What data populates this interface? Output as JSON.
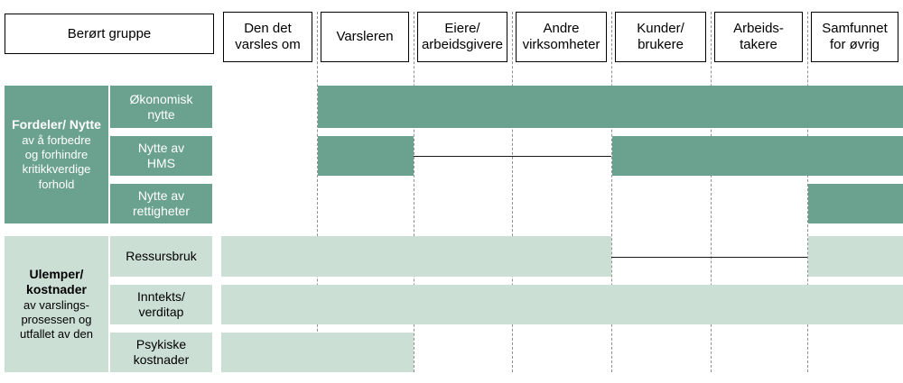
{
  "corner_label": "Berørt gruppe",
  "columns": [
    "Den det\nvarsles om",
    "Varsleren",
    "Eiere/\narbeidsgivere",
    "Andre\nvirksomheter",
    "Kunder/\nbrukere",
    "Arbeids-\ntakere",
    "Samfunnet\nfor øvrig"
  ],
  "groups": [
    {
      "title": "Fordeler/ Nytte",
      "subtitle": "av å forbedre\nog forhindre\nkritikkverdige\nforhold",
      "theme": "dark"
    },
    {
      "title": "Ulemper/\nkostnader",
      "subtitle": "av varslings-\nprosessen og\nutfallet av den",
      "theme": "light"
    }
  ],
  "rows": [
    {
      "label": "Økonomisk\nnytte",
      "theme": "dark",
      "bars": [
        {
          "from": 1,
          "to": 6
        }
      ],
      "connectors": []
    },
    {
      "label": "Nytte av\nHMS",
      "theme": "dark",
      "bars": [
        {
          "from": 1,
          "to": 1
        },
        {
          "from": 4,
          "to": 6
        }
      ],
      "connectors": [
        {
          "from": 2,
          "to": 4
        }
      ]
    },
    {
      "label": "Nytte av\nrettigheter",
      "theme": "dark",
      "bars": [
        {
          "from": 6,
          "to": 6
        }
      ],
      "connectors": []
    },
    {
      "label": "Ressursbruk",
      "theme": "light",
      "bars": [
        {
          "from": 0,
          "to": 3
        },
        {
          "from": 6,
          "to": 6
        }
      ],
      "connectors": [
        {
          "from": 4,
          "to": 6
        }
      ]
    },
    {
      "label": "Inntekts/\nverditap",
      "theme": "light",
      "bars": [
        {
          "from": 0,
          "to": 6
        }
      ],
      "connectors": []
    },
    {
      "label": "Psykiske\nkostnader",
      "theme": "light",
      "bars": [
        {
          "from": 0,
          "to": 1
        }
      ],
      "connectors": []
    }
  ],
  "colors": {
    "dark": "#6BA18F",
    "light": "#CCDFD5",
    "grid": "#8f8f8f",
    "line": "#1a1a1a"
  }
}
